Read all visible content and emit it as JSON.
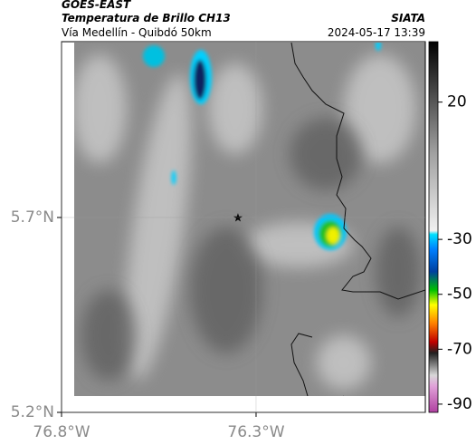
{
  "header": {
    "title": "GOES-EAST",
    "subtitle": "Temperatura de Brillo CH13",
    "source": "SIATA",
    "route": "Vía Medellín - Quibdó 50km",
    "timestamp": "2024-05-17 13:39"
  },
  "map": {
    "xlim": [
      -76.8,
      -75.865
    ],
    "ylim": [
      5.2,
      6.151
    ],
    "xticks": [
      {
        "value": -76.8,
        "label": "76.8°W"
      },
      {
        "value": -76.3,
        "label": "76.3°W"
      }
    ],
    "yticks": [
      {
        "value": 5.2,
        "label": "5.2°N"
      },
      {
        "value": 5.7,
        "label": "5.7°N"
      }
    ]
  },
  "colorbar": {
    "lim": [
      -93,
      42
    ],
    "ticks": [
      20,
      -30,
      -50,
      -70,
      -90
    ]
  }
}
